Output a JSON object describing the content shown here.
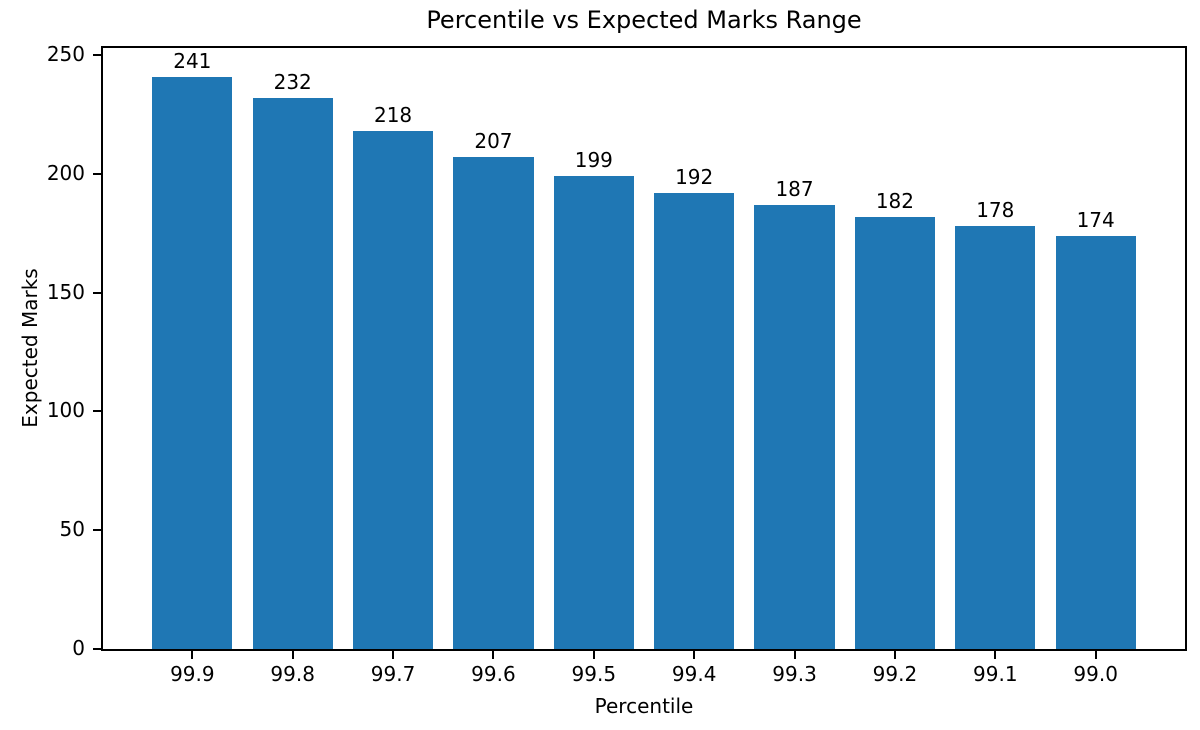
{
  "chart_data": {
    "type": "bar",
    "title": "Percentile vs Expected Marks Range",
    "xlabel": "Percentile",
    "ylabel": "Expected Marks",
    "categories": [
      "99.9",
      "99.8",
      "99.7",
      "99.6",
      "99.5",
      "99.4",
      "99.3",
      "99.2",
      "99.1",
      "99.0"
    ],
    "values": [
      241,
      232,
      218,
      207,
      199,
      192,
      187,
      182,
      178,
      174
    ],
    "bar_labels_shown": true,
    "ylim": [
      0,
      253
    ],
    "yticks": [
      0,
      50,
      100,
      150,
      200,
      250
    ],
    "bar_color": "#1f77b4",
    "axis_color": "#000000",
    "background_color": "#ffffff",
    "grid": false,
    "legend": "none"
  }
}
